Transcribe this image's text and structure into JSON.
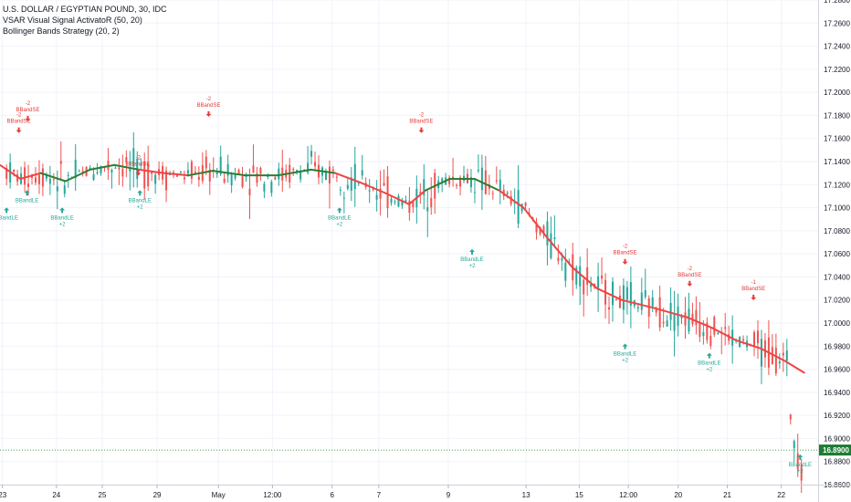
{
  "legend": {
    "symbol": "U.S. DOLLAR / EGYPTIAN POUND, 30, IDC",
    "indicator1": "VSAR Visual Signal ActivatoR (50, 20)",
    "indicator2": "Bollinger Bands Strategy (20, 2)"
  },
  "colors": {
    "up": "#26a69a",
    "down": "#ef5350",
    "vsar_red": "#ef4444",
    "vsar_green": "#2e7d32",
    "long_marker": "#26a69a",
    "short_marker": "#e53935",
    "last_price_bg": "#1e7b34",
    "grid": "#f0f3fa",
    "price_line": "#43a047"
  },
  "chart_data": {
    "type": "candlestick",
    "yaxis": {
      "side": "right",
      "ylim": [
        16.86,
        17.28
      ],
      "ticks": [
        16.86,
        16.88,
        16.9,
        16.92,
        16.94,
        16.96,
        16.98,
        17.0,
        17.02,
        17.04,
        17.06,
        17.08,
        17.1,
        17.12,
        17.14,
        17.16,
        17.18,
        17.2,
        17.22,
        17.24,
        17.26,
        17.28
      ],
      "tick_labels": [
        "16.8600",
        "16.8800",
        "16.9000",
        "16.9200",
        "16.9400",
        "16.9600",
        "16.9800",
        "17.0000",
        "17.0200",
        "17.0400",
        "17.0600",
        "17.0800",
        "17.1000",
        "17.1200",
        "17.1400",
        "17.1600",
        "17.1800",
        "17.2000",
        "17.2200",
        "17.2400",
        "17.2600",
        "17.2800"
      ]
    },
    "xaxis": {
      "range": [
        0,
        100
      ],
      "ticks": [
        {
          "x": 0.3,
          "label": "23"
        },
        {
          "x": 6.9,
          "label": "24"
        },
        {
          "x": 12.5,
          "label": "25"
        },
        {
          "x": 19.2,
          "label": "29"
        },
        {
          "x": 26.7,
          "label": "May"
        },
        {
          "x": 33.3,
          "label": "12:00"
        },
        {
          "x": 40.6,
          "label": "6"
        },
        {
          "x": 46.3,
          "label": "7"
        },
        {
          "x": 54.8,
          "label": "9"
        },
        {
          "x": 64.3,
          "label": "13"
        },
        {
          "x": 70.8,
          "label": "15"
        },
        {
          "x": 76.8,
          "label": "12:00"
        },
        {
          "x": 82.9,
          "label": "20"
        },
        {
          "x": 88.9,
          "label": "21"
        },
        {
          "x": 95.5,
          "label": "22"
        }
      ]
    },
    "last_price": {
      "value": 16.89,
      "label": "16.8900"
    },
    "candle_count": 220,
    "vsar_line": [
      {
        "x": 0,
        "y": 17.137,
        "color": "red"
      },
      {
        "x": 2.5,
        "y": 17.125,
        "color": "red"
      },
      {
        "x": 5,
        "y": 17.13,
        "color": "green"
      },
      {
        "x": 8,
        "y": 17.123,
        "color": "green"
      },
      {
        "x": 11,
        "y": 17.133,
        "color": "green"
      },
      {
        "x": 14,
        "y": 17.137,
        "color": "green"
      },
      {
        "x": 17,
        "y": 17.133,
        "color": "red"
      },
      {
        "x": 20,
        "y": 17.13,
        "color": "red"
      },
      {
        "x": 23,
        "y": 17.128,
        "color": "green"
      },
      {
        "x": 26,
        "y": 17.132,
        "color": "green"
      },
      {
        "x": 30,
        "y": 17.128,
        "color": "green"
      },
      {
        "x": 34,
        "y": 17.128,
        "color": "green"
      },
      {
        "x": 38,
        "y": 17.133,
        "color": "green"
      },
      {
        "x": 41,
        "y": 17.13,
        "color": "red"
      },
      {
        "x": 44,
        "y": 17.122,
        "color": "red"
      },
      {
        "x": 47,
        "y": 17.113,
        "color": "red"
      },
      {
        "x": 50,
        "y": 17.103,
        "color": "red"
      },
      {
        "x": 52,
        "y": 17.115,
        "color": "green"
      },
      {
        "x": 55,
        "y": 17.125,
        "color": "green"
      },
      {
        "x": 58,
        "y": 17.125,
        "color": "green"
      },
      {
        "x": 61,
        "y": 17.115,
        "color": "red"
      },
      {
        "x": 64,
        "y": 17.1,
        "color": "red"
      },
      {
        "x": 67,
        "y": 17.073,
        "color": "red"
      },
      {
        "x": 70,
        "y": 17.048,
        "color": "red"
      },
      {
        "x": 73,
        "y": 17.03,
        "color": "red"
      },
      {
        "x": 76,
        "y": 17.02,
        "color": "red"
      },
      {
        "x": 80,
        "y": 17.013,
        "color": "red"
      },
      {
        "x": 84,
        "y": 17.005,
        "color": "red"
      },
      {
        "x": 87,
        "y": 16.996,
        "color": "red"
      },
      {
        "x": 90,
        "y": 16.985,
        "color": "red"
      },
      {
        "x": 93,
        "y": 16.978,
        "color": "red"
      },
      {
        "x": 96,
        "y": 16.967,
        "color": "red"
      },
      {
        "x": 98.3,
        "y": 16.957,
        "color": "red"
      }
    ],
    "signals": [
      {
        "type": "long",
        "x": 0.8,
        "y": 17.097,
        "label": "BBandLE",
        "qty": ""
      },
      {
        "type": "long",
        "x": 3.3,
        "y": 17.112,
        "label": "BBandLE",
        "qty": ""
      },
      {
        "type": "short",
        "x": 2.3,
        "y": 17.168,
        "label": "BBandSE",
        "qty": "-2"
      },
      {
        "type": "short",
        "x": 3.4,
        "y": 17.178,
        "label": "BBandSE",
        "qty": "-2"
      },
      {
        "type": "long",
        "x": 7.6,
        "y": 17.097,
        "label": "BBandLE",
        "qty": "+2"
      },
      {
        "type": "short",
        "x": 16.9,
        "y": 17.131,
        "label": "BBandSE",
        "qty": "-2"
      },
      {
        "type": "long",
        "x": 17.1,
        "y": 17.112,
        "label": "BBandLE",
        "qty": "+2"
      },
      {
        "type": "short",
        "x": 25.5,
        "y": 17.182,
        "label": "BBandSE",
        "qty": "-2"
      },
      {
        "type": "long",
        "x": 41.5,
        "y": 17.097,
        "label": "BBandLE",
        "qty": "+2"
      },
      {
        "type": "short",
        "x": 51.5,
        "y": 17.168,
        "label": "BBandSE",
        "qty": "-2"
      },
      {
        "type": "long",
        "x": 57.7,
        "y": 17.061,
        "label": "BBandLE",
        "qty": "+2"
      },
      {
        "type": "short",
        "x": 76.4,
        "y": 17.054,
        "label": "BBandSE",
        "qty": "-2"
      },
      {
        "type": "long",
        "x": 76.4,
        "y": 16.979,
        "label": "BBandLE",
        "qty": "+2"
      },
      {
        "type": "short",
        "x": 84.3,
        "y": 17.035,
        "label": "BBandSE",
        "qty": "-2"
      },
      {
        "type": "long",
        "x": 86.7,
        "y": 16.971,
        "label": "BBandLE",
        "qty": "+2"
      },
      {
        "type": "short",
        "x": 92.1,
        "y": 17.023,
        "label": "BBandSE",
        "qty": "-1"
      },
      {
        "type": "long",
        "x": 97.8,
        "y": 16.883,
        "label": "BBandLE",
        "qty": "+2"
      }
    ]
  }
}
